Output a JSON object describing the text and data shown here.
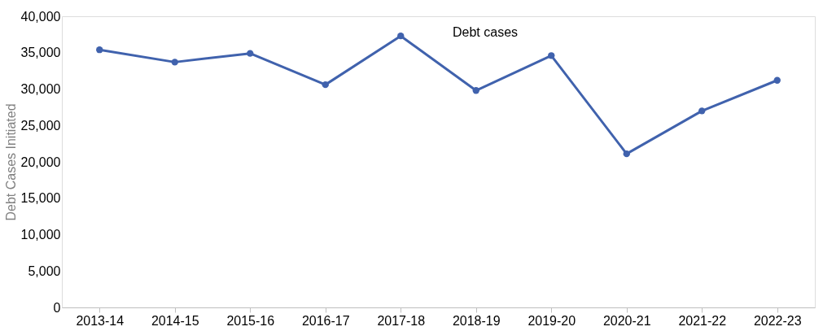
{
  "chart_data": {
    "type": "line",
    "ylabel": "Debt Cases Initiated",
    "categories": [
      "2013-14",
      "2014-15",
      "2015-16",
      "2016-17",
      "2017-18",
      "2018-19",
      "2019-20",
      "2020-21",
      "2021-22",
      "2022-23"
    ],
    "series": [
      {
        "name": "Debt cases",
        "color": "#4062ad",
        "values": [
          35400,
          33700,
          34900,
          30600,
          37300,
          29800,
          34600,
          21100,
          27000,
          31200
        ]
      }
    ],
    "ylim": [
      0,
      40000
    ],
    "yticks": [
      0,
      {
        "value": 5000,
        "label": "5,000"
      },
      {
        "value": 10000,
        "label": "10,000"
      },
      {
        "value": 15000,
        "label": "15,000"
      },
      {
        "value": 20000,
        "label": "20,000"
      },
      {
        "value": 25000,
        "label": "25,000"
      },
      {
        "value": 30000,
        "label": "30,000"
      },
      {
        "value": 35000,
        "label": "35,000"
      },
      {
        "value": 40000,
        "label": "40,000"
      }
    ],
    "grid": false,
    "marker": "circle",
    "line_style": "solid"
  }
}
